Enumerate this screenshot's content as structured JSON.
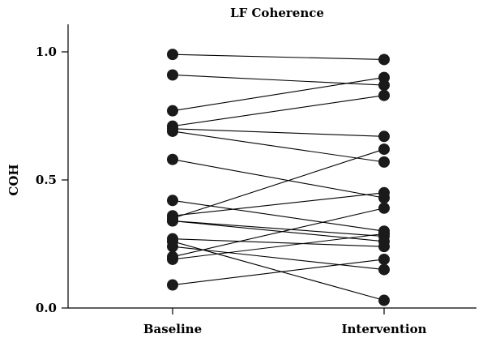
{
  "chart_data": {
    "type": "scatter",
    "title": "LF Coherence",
    "xlabel": "",
    "ylabel": "COH",
    "categories": [
      "Baseline",
      "Intervention"
    ],
    "ylim": [
      0.0,
      1.0
    ],
    "yticks": [
      "0.0",
      "0.5",
      "1.0"
    ],
    "grid": false,
    "legend": "none",
    "paired": true,
    "series": [
      {
        "values": [
          0.99,
          0.97
        ]
      },
      {
        "values": [
          0.91,
          0.87
        ]
      },
      {
        "values": [
          0.77,
          0.9
        ]
      },
      {
        "values": [
          0.71,
          0.83
        ]
      },
      {
        "values": [
          0.7,
          0.67
        ]
      },
      {
        "values": [
          0.69,
          0.57
        ]
      },
      {
        "values": [
          0.58,
          0.43
        ]
      },
      {
        "values": [
          0.42,
          0.3
        ]
      },
      {
        "values": [
          0.36,
          0.45
        ]
      },
      {
        "values": [
          0.35,
          0.62
        ]
      },
      {
        "values": [
          0.34,
          0.26
        ]
      },
      {
        "values": [
          0.34,
          0.28
        ]
      },
      {
        "values": [
          0.27,
          0.24
        ]
      },
      {
        "values": [
          0.26,
          0.03
        ]
      },
      {
        "values": [
          0.24,
          0.15
        ]
      },
      {
        "values": [
          0.2,
          0.39
        ]
      },
      {
        "values": [
          0.19,
          0.29
        ]
      },
      {
        "values": [
          0.09,
          0.19
        ]
      }
    ]
  }
}
